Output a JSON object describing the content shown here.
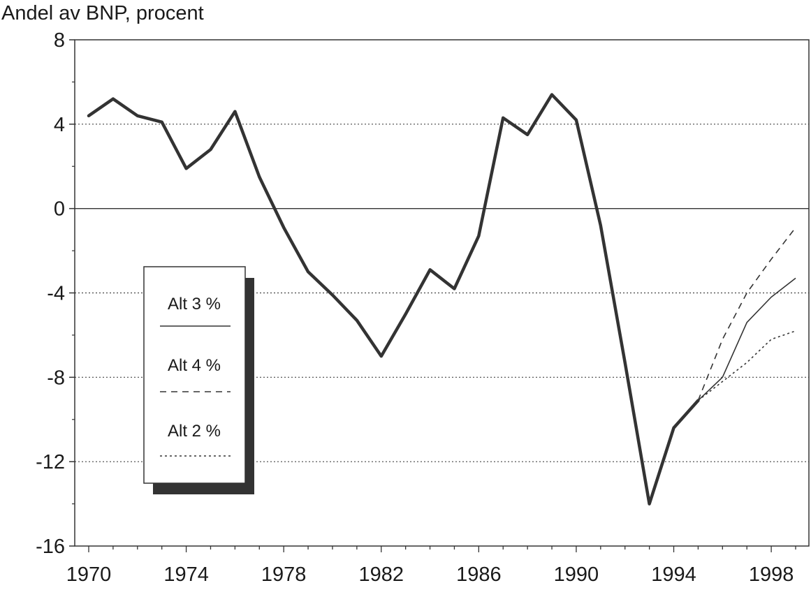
{
  "chart_data": {
    "type": "line",
    "ylabel": "Andel av BNP, procent",
    "xlabel": "",
    "title": "",
    "xlim": [
      1970,
      1999
    ],
    "ylim": [
      -16,
      8
    ],
    "xticks": [
      "1970",
      "1974",
      "1978",
      "1982",
      "1986",
      "1990",
      "1994",
      "1998"
    ],
    "yticks": [
      "8",
      "4",
      "0",
      "-4",
      "-8",
      "-12",
      "-16"
    ],
    "grid": "horizontal dotted",
    "legend_position": "left-center",
    "history": {
      "x": [
        1970,
        1971,
        1972,
        1973,
        1974,
        1975,
        1976,
        1977,
        1978,
        1979,
        1980,
        1981,
        1982,
        1983,
        1984,
        1985,
        1986,
        1987,
        1988,
        1989,
        1990,
        1991,
        1992,
        1993,
        1994,
        1995
      ],
      "values": [
        4.4,
        5.2,
        4.4,
        4.1,
        1.9,
        2.8,
        4.6,
        1.5,
        -0.9,
        -3.0,
        -4.1,
        -5.3,
        -7.0,
        -5.0,
        -2.9,
        -3.8,
        -1.3,
        4.3,
        3.5,
        5.4,
        4.2,
        -0.8,
        -7.3,
        -14.0,
        -10.4,
        -9.1
      ]
    },
    "series": [
      {
        "name": "Alt 3 %",
        "style": "solid",
        "x": [
          1995,
          1996,
          1997,
          1998,
          1999
        ],
        "values": [
          -9.1,
          -8.0,
          -5.4,
          -4.2,
          -3.3
        ]
      },
      {
        "name": "Alt 4 %",
        "style": "dashed",
        "x": [
          1995,
          1996,
          1997,
          1998,
          1999
        ],
        "values": [
          -9.1,
          -6.2,
          -4.0,
          -2.4,
          -0.9
        ]
      },
      {
        "name": "Alt 2 %",
        "style": "dotted",
        "x": [
          1995,
          1996,
          1997,
          1998,
          1999
        ],
        "values": [
          -9.1,
          -8.2,
          -7.3,
          -6.2,
          -5.8
        ]
      }
    ],
    "colors": {
      "line": "#333333",
      "grid": "#444444",
      "text": "#1a1a1a",
      "legend_shadow": "#333333"
    }
  }
}
